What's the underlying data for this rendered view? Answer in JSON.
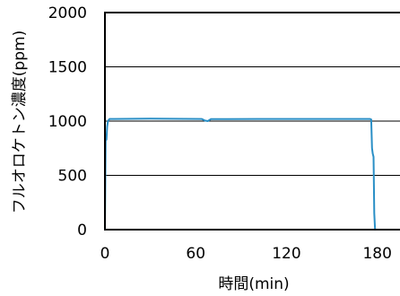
{
  "chart_data": {
    "type": "line",
    "title": "",
    "xlabel": "時間(min)",
    "ylabel": "フルオロケトン濃度(ppm)",
    "xlim": [
      0,
      195
    ],
    "ylim": [
      0,
      2000
    ],
    "x_ticks": [
      0,
      60,
      120,
      180
    ],
    "y_ticks": [
      0,
      500,
      1000,
      1500,
      2000
    ],
    "grid": "horizontal",
    "series": [
      {
        "color": "#2a8fc6",
        "x": [
          0,
          0.5,
          1,
          1.5,
          2,
          3,
          5,
          30,
          64,
          66,
          68,
          70,
          100,
          140,
          170,
          175,
          176,
          176.5,
          177,
          177.5,
          178,
          178.5
        ],
        "y": [
          0,
          820,
          830,
          950,
          1000,
          1020,
          1020,
          1022,
          1020,
          1005,
          1000,
          1018,
          1020,
          1020,
          1020,
          1020,
          1015,
          750,
          700,
          670,
          150,
          0
        ]
      }
    ]
  }
}
